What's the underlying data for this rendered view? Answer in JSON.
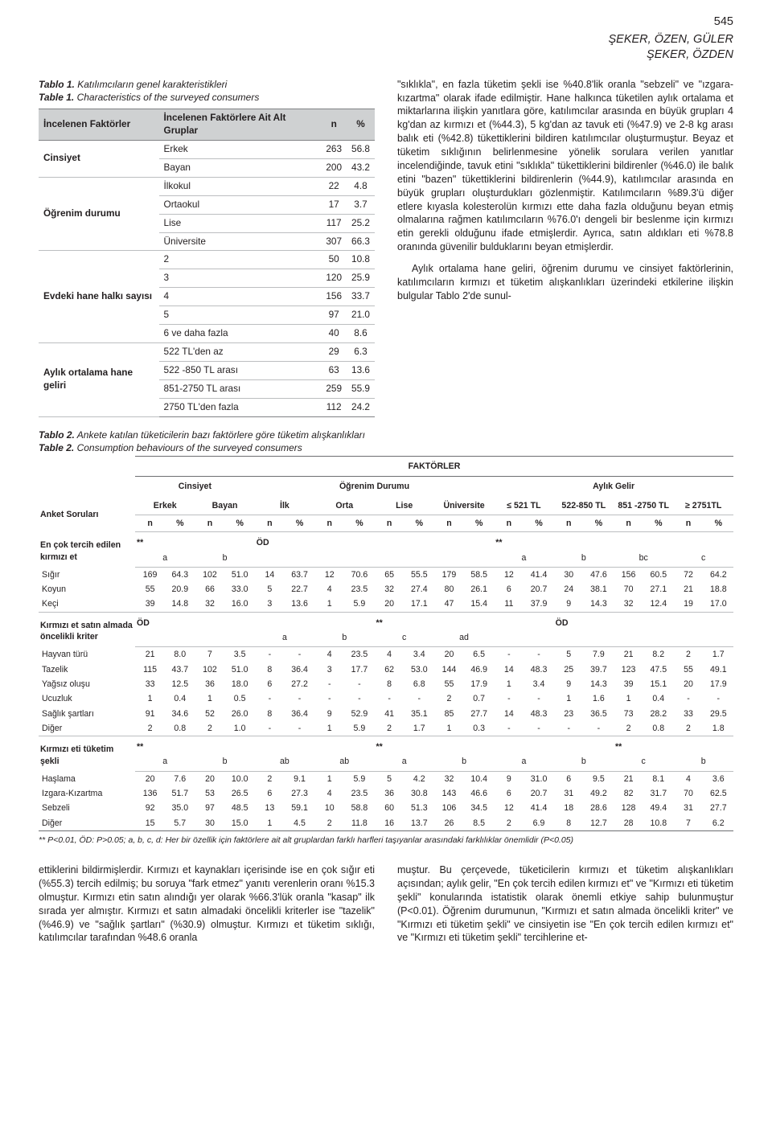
{
  "page": {
    "number": "545",
    "authors_line1": "ŞEKER, ÖZEN, GÜLER",
    "authors_line2": "ŞEKER, ÖZDEN"
  },
  "table1": {
    "caption_bold": "Tablo 1.",
    "caption_tr": " Katılımcıların genel karakteristikleri",
    "caption_bold2": "Table 1.",
    "caption_en": " Characteristics of the surveyed consumers",
    "head": {
      "c1": "İncelenen Faktörler",
      "c2": "İncelenen Faktörlere Ait Alt Gruplar",
      "c3": "n",
      "c4": "%"
    },
    "groups": [
      {
        "name": "Cinsiyet",
        "rows": [
          {
            "sub": "Erkek",
            "n": "263",
            "p": "56.8"
          },
          {
            "sub": "Bayan",
            "n": "200",
            "p": "43.2"
          }
        ]
      },
      {
        "name": "Öğrenim durumu",
        "rows": [
          {
            "sub": "İlkokul",
            "n": "22",
            "p": "4.8"
          },
          {
            "sub": "Ortaokul",
            "n": "17",
            "p": "3.7"
          },
          {
            "sub": "Lise",
            "n": "117",
            "p": "25.2"
          },
          {
            "sub": "Üniversite",
            "n": "307",
            "p": "66.3"
          }
        ]
      },
      {
        "name": "Evdeki hane halkı sayısı",
        "rows": [
          {
            "sub": "2",
            "n": "50",
            "p": "10.8"
          },
          {
            "sub": "3",
            "n": "120",
            "p": "25.9"
          },
          {
            "sub": "4",
            "n": "156",
            "p": "33.7"
          },
          {
            "sub": "5",
            "n": "97",
            "p": "21.0"
          },
          {
            "sub": "6 ve daha fazla",
            "n": "40",
            "p": "8.6"
          }
        ]
      },
      {
        "name": "Aylık ortalama hane geliri",
        "rows": [
          {
            "sub": "522 TL'den az",
            "n": "29",
            "p": "6.3"
          },
          {
            "sub": "522 -850 TL arası",
            "n": "63",
            "p": "13.6"
          },
          {
            "sub": "851-2750 TL arası",
            "n": "259",
            "p": "55.9"
          },
          {
            "sub": "2750 TL'den fazla",
            "n": "112",
            "p": "24.2"
          }
        ]
      }
    ]
  },
  "right_para1": "\"sıklıkla\", en fazla tüketim şekli ise %40.8'lik oranla \"sebzeli\" ve \"ızgara-kızartma\" olarak ifade edilmiştir. Hane halkınca tüketilen aylık ortalama et miktarlarına ilişkin yanıtlara göre, katılımcılar arasında en büyük grupları 4 kg'dan az kırmızı et (%44.3), 5 kg'dan az tavuk eti (%47.9) ve 2-8 kg arası balık eti (%42.8) tükettiklerini bildiren katılımcılar oluşturmuştur. Beyaz et tüketim sıklığının belirlenmesine yönelik sorulara verilen yanıtlar incelendiğinde, tavuk etini \"sıklıkla\" tükettiklerini bildirenler (%46.0) ile balık etini \"bazen\" tükettiklerini bildirenlerin (%44.9), katılımcılar arasında en büyük grupları oluşturdukları gözlenmiştir. Katılımcıların %89.3'ü diğer etlere kıyasla kolesterolün kırmızı ette daha fazla olduğunu beyan etmiş olmalarına rağmen katılımcıların %76.0'ı dengeli bir beslenme için kırmızı etin gerekli olduğunu ifade etmişlerdir. Ayrıca, satın aldıkları eti %78.8 oranında güvenilir bulduklarını beyan etmişlerdir.",
  "right_para2": "Aylık ortalama hane geliri, öğrenim durumu ve cinsiyet faktörlerinin, katılımcıların kırmızı et tüketim alışkanlıkları üzerindeki etkilerine ilişkin bulgular Tablo 2'de sunul-",
  "table2": {
    "caption_bold": "Tablo 2.",
    "caption_tr": " Ankete katılan tüketicilerin bazı faktörlere göre tüketim alışkanlıkları",
    "caption_bold2": "Table 2.",
    "caption_en": " Consumption behaviours of the surveyed consumers",
    "factTitle": "FAKTÖRLER",
    "grpHeads": {
      "g1": "Cinsiyet",
      "g2": "Öğrenim Durumu",
      "g3": "Aylık Gelir"
    },
    "subHeads": [
      "Erkek",
      "Bayan",
      "İlk",
      "Orta",
      "Lise",
      "Üniversite",
      "≤ 521 TL",
      "522-850 TL",
      "851 -2750 TL",
      "≥ 2751TL"
    ],
    "sideLabel": "Anket Soruları",
    "np": {
      "n": "n",
      "p": "%"
    },
    "sections": [
      {
        "title": "En çok tercih edilen kırmızı et",
        "sig": [
          "**",
          "",
          "ÖD",
          "",
          "",
          "",
          "**",
          "",
          "",
          ""
        ],
        "letters": [
          "a",
          "b",
          "",
          "",
          "",
          "",
          "a",
          "b",
          "bc",
          "c"
        ],
        "rows": [
          {
            "lab": "Sığır",
            "v": [
              [
                "169",
                "64.3"
              ],
              [
                "102",
                "51.0"
              ],
              [
                "14",
                "63.7"
              ],
              [
                "12",
                "70.6"
              ],
              [
                "65",
                "55.5"
              ],
              [
                "179",
                "58.5"
              ],
              [
                "12",
                "41.4"
              ],
              [
                "30",
                "47.6"
              ],
              [
                "156",
                "60.5"
              ],
              [
                "72",
                "64.2"
              ]
            ]
          },
          {
            "lab": "Koyun",
            "v": [
              [
                "55",
                "20.9"
              ],
              [
                "66",
                "33.0"
              ],
              [
                "5",
                "22.7"
              ],
              [
                "4",
                "23.5"
              ],
              [
                "32",
                "27.4"
              ],
              [
                "80",
                "26.1"
              ],
              [
                "6",
                "20.7"
              ],
              [
                "24",
                "38.1"
              ],
              [
                "70",
                "27.1"
              ],
              [
                "21",
                "18.8"
              ]
            ]
          },
          {
            "lab": "Keçi",
            "v": [
              [
                "39",
                "14.8"
              ],
              [
                "32",
                "16.0"
              ],
              [
                "3",
                "13.6"
              ],
              [
                "1",
                "5.9"
              ],
              [
                "20",
                "17.1"
              ],
              [
                "47",
                "15.4"
              ],
              [
                "11",
                "37.9"
              ],
              [
                "9",
                "14.3"
              ],
              [
                "32",
                "12.4"
              ],
              [
                "19",
                "17.0"
              ]
            ]
          }
        ]
      },
      {
        "title": "Kırmızı et satın almada öncelikli kriter",
        "sig": [
          "ÖD",
          "",
          "",
          "",
          "**",
          "",
          "",
          "ÖD",
          "",
          ""
        ],
        "letters": [
          "",
          "",
          "a",
          "b",
          "c",
          "ad",
          "",
          "",
          "",
          ""
        ],
        "rows": [
          {
            "lab": "Hayvan türü",
            "v": [
              [
                "21",
                "8.0"
              ],
              [
                "7",
                "3.5"
              ],
              [
                "-",
                "-"
              ],
              [
                "4",
                "23.5"
              ],
              [
                "4",
                "3.4"
              ],
              [
                "20",
                "6.5"
              ],
              [
                "-",
                "-"
              ],
              [
                "5",
                "7.9"
              ],
              [
                "21",
                "8.2"
              ],
              [
                "2",
                "1.7"
              ]
            ]
          },
          {
            "lab": "Tazelik",
            "v": [
              [
                "115",
                "43.7"
              ],
              [
                "102",
                "51.0"
              ],
              [
                "8",
                "36.4"
              ],
              [
                "3",
                "17.7"
              ],
              [
                "62",
                "53.0"
              ],
              [
                "144",
                "46.9"
              ],
              [
                "14",
                "48.3"
              ],
              [
                "25",
                "39.7"
              ],
              [
                "123",
                "47.5"
              ],
              [
                "55",
                "49.1"
              ]
            ]
          },
          {
            "lab": "Yağsız oluşu",
            "v": [
              [
                "33",
                "12.5"
              ],
              [
                "36",
                "18.0"
              ],
              [
                "6",
                "27.2"
              ],
              [
                "-",
                "-"
              ],
              [
                "8",
                "6.8"
              ],
              [
                "55",
                "17.9"
              ],
              [
                "1",
                "3.4"
              ],
              [
                "9",
                "14.3"
              ],
              [
                "39",
                "15.1"
              ],
              [
                "20",
                "17.9"
              ]
            ]
          },
          {
            "lab": "Ucuzluk",
            "v": [
              [
                "1",
                "0.4"
              ],
              [
                "1",
                "0.5"
              ],
              [
                "-",
                "-"
              ],
              [
                "-",
                "-"
              ],
              [
                "-",
                "-"
              ],
              [
                "2",
                "0.7"
              ],
              [
                "-",
                "-"
              ],
              [
                "1",
                "1.6"
              ],
              [
                "1",
                "0.4"
              ],
              [
                "-",
                "-"
              ]
            ]
          },
          {
            "lab": "Sağlık şartları",
            "v": [
              [
                "91",
                "34.6"
              ],
              [
                "52",
                "26.0"
              ],
              [
                "8",
                "36.4"
              ],
              [
                "9",
                "52.9"
              ],
              [
                "41",
                "35.1"
              ],
              [
                "85",
                "27.7"
              ],
              [
                "14",
                "48.3"
              ],
              [
                "23",
                "36.5"
              ],
              [
                "73",
                "28.2"
              ],
              [
                "33",
                "29.5"
              ]
            ]
          },
          {
            "lab": "Diğer",
            "v": [
              [
                "2",
                "0.8"
              ],
              [
                "2",
                "1.0"
              ],
              [
                "-",
                "-"
              ],
              [
                "1",
                "5.9"
              ],
              [
                "2",
                "1.7"
              ],
              [
                "1",
                "0.3"
              ],
              [
                "-",
                "-"
              ],
              [
                "-",
                "-"
              ],
              [
                "2",
                "0.8"
              ],
              [
                "2",
                "1.8"
              ]
            ]
          }
        ]
      },
      {
        "title": "Kırmızı eti tüketim şekli",
        "sig": [
          "**",
          "",
          "",
          "",
          "**",
          "",
          "",
          "",
          "**",
          ""
        ],
        "letters": [
          "a",
          "b",
          "ab",
          "ab",
          "a",
          "b",
          "a",
          "b",
          "c",
          "b"
        ],
        "rows": [
          {
            "lab": "Haşlama",
            "v": [
              [
                "20",
                "7.6"
              ],
              [
                "20",
                "10.0"
              ],
              [
                "2",
                "9.1"
              ],
              [
                "1",
                "5.9"
              ],
              [
                "5",
                "4.2"
              ],
              [
                "32",
                "10.4"
              ],
              [
                "9",
                "31.0"
              ],
              [
                "6",
                "9.5"
              ],
              [
                "21",
                "8.1"
              ],
              [
                "4",
                "3.6"
              ]
            ]
          },
          {
            "lab": "Izgara-Kızartma",
            "v": [
              [
                "136",
                "51.7"
              ],
              [
                "53",
                "26.5"
              ],
              [
                "6",
                "27.3"
              ],
              [
                "4",
                "23.5"
              ],
              [
                "36",
                "30.8"
              ],
              [
                "143",
                "46.6"
              ],
              [
                "6",
                "20.7"
              ],
              [
                "31",
                "49.2"
              ],
              [
                "82",
                "31.7"
              ],
              [
                "70",
                "62.5"
              ]
            ]
          },
          {
            "lab": "Sebzeli",
            "v": [
              [
                "92",
                "35.0"
              ],
              [
                "97",
                "48.5"
              ],
              [
                "13",
                "59.1"
              ],
              [
                "10",
                "58.8"
              ],
              [
                "60",
                "51.3"
              ],
              [
                "106",
                "34.5"
              ],
              [
                "12",
                "41.4"
              ],
              [
                "18",
                "28.6"
              ],
              [
                "128",
                "49.4"
              ],
              [
                "31",
                "27.7"
              ]
            ]
          },
          {
            "lab": "Diğer",
            "v": [
              [
                "15",
                "5.7"
              ],
              [
                "30",
                "15.0"
              ],
              [
                "1",
                "4.5"
              ],
              [
                "2",
                "11.8"
              ],
              [
                "16",
                "13.7"
              ],
              [
                "26",
                "8.5"
              ],
              [
                "2",
                "6.9"
              ],
              [
                "8",
                "12.7"
              ],
              [
                "28",
                "10.8"
              ],
              [
                "7",
                "6.2"
              ]
            ]
          }
        ]
      }
    ],
    "footnote": "** P<0.01, ÖD: P>0.05; a, b, c, d: Her bir özellik için faktörlere ait alt gruplardan farklı harfleri taşıyanlar arasındaki farklılıklar önemlidir (P<0.05)"
  },
  "bottom_left": "ettiklerini bildirmişlerdir. Kırmızı et kaynakları içerisinde ise en çok sığır eti (%55.3) tercih edilmiş; bu soruya \"fark etmez\" yanıtı verenlerin oranı %15.3 olmuştur. Kırmızı etin satın alındığı yer olarak %66.3'lük oranla \"kasap\" ilk sırada yer almıştır. Kırmızı et satın almadaki öncelikli kriterler ise \"tazelik\" (%46.9) ve \"sağlık şartları\" (%30.9) olmuştur. Kırmızı et tüketim sıklığı, katılımcılar tarafından %48.6 oranla",
  "bottom_right": "muştur. Bu çerçevede, tüketicilerin kırmızı et tüketim alışkanlıkları açısından; aylık gelir, \"En çok tercih edilen kırmızı et\" ve \"Kırmızı eti tüketim şekli\" konularında istatistik olarak önemli etkiye sahip bulunmuştur (P<0.01). Öğrenim durumunun, \"Kırmızı et satın almada öncelikli kriter\" ve \"Kırmızı eti tüketim şekli\" ve cinsiyetin ise \"En çok tercih edilen kırmızı et\" ve \"Kırmızı eti tüketim şekli\" tercihlerine et-"
}
